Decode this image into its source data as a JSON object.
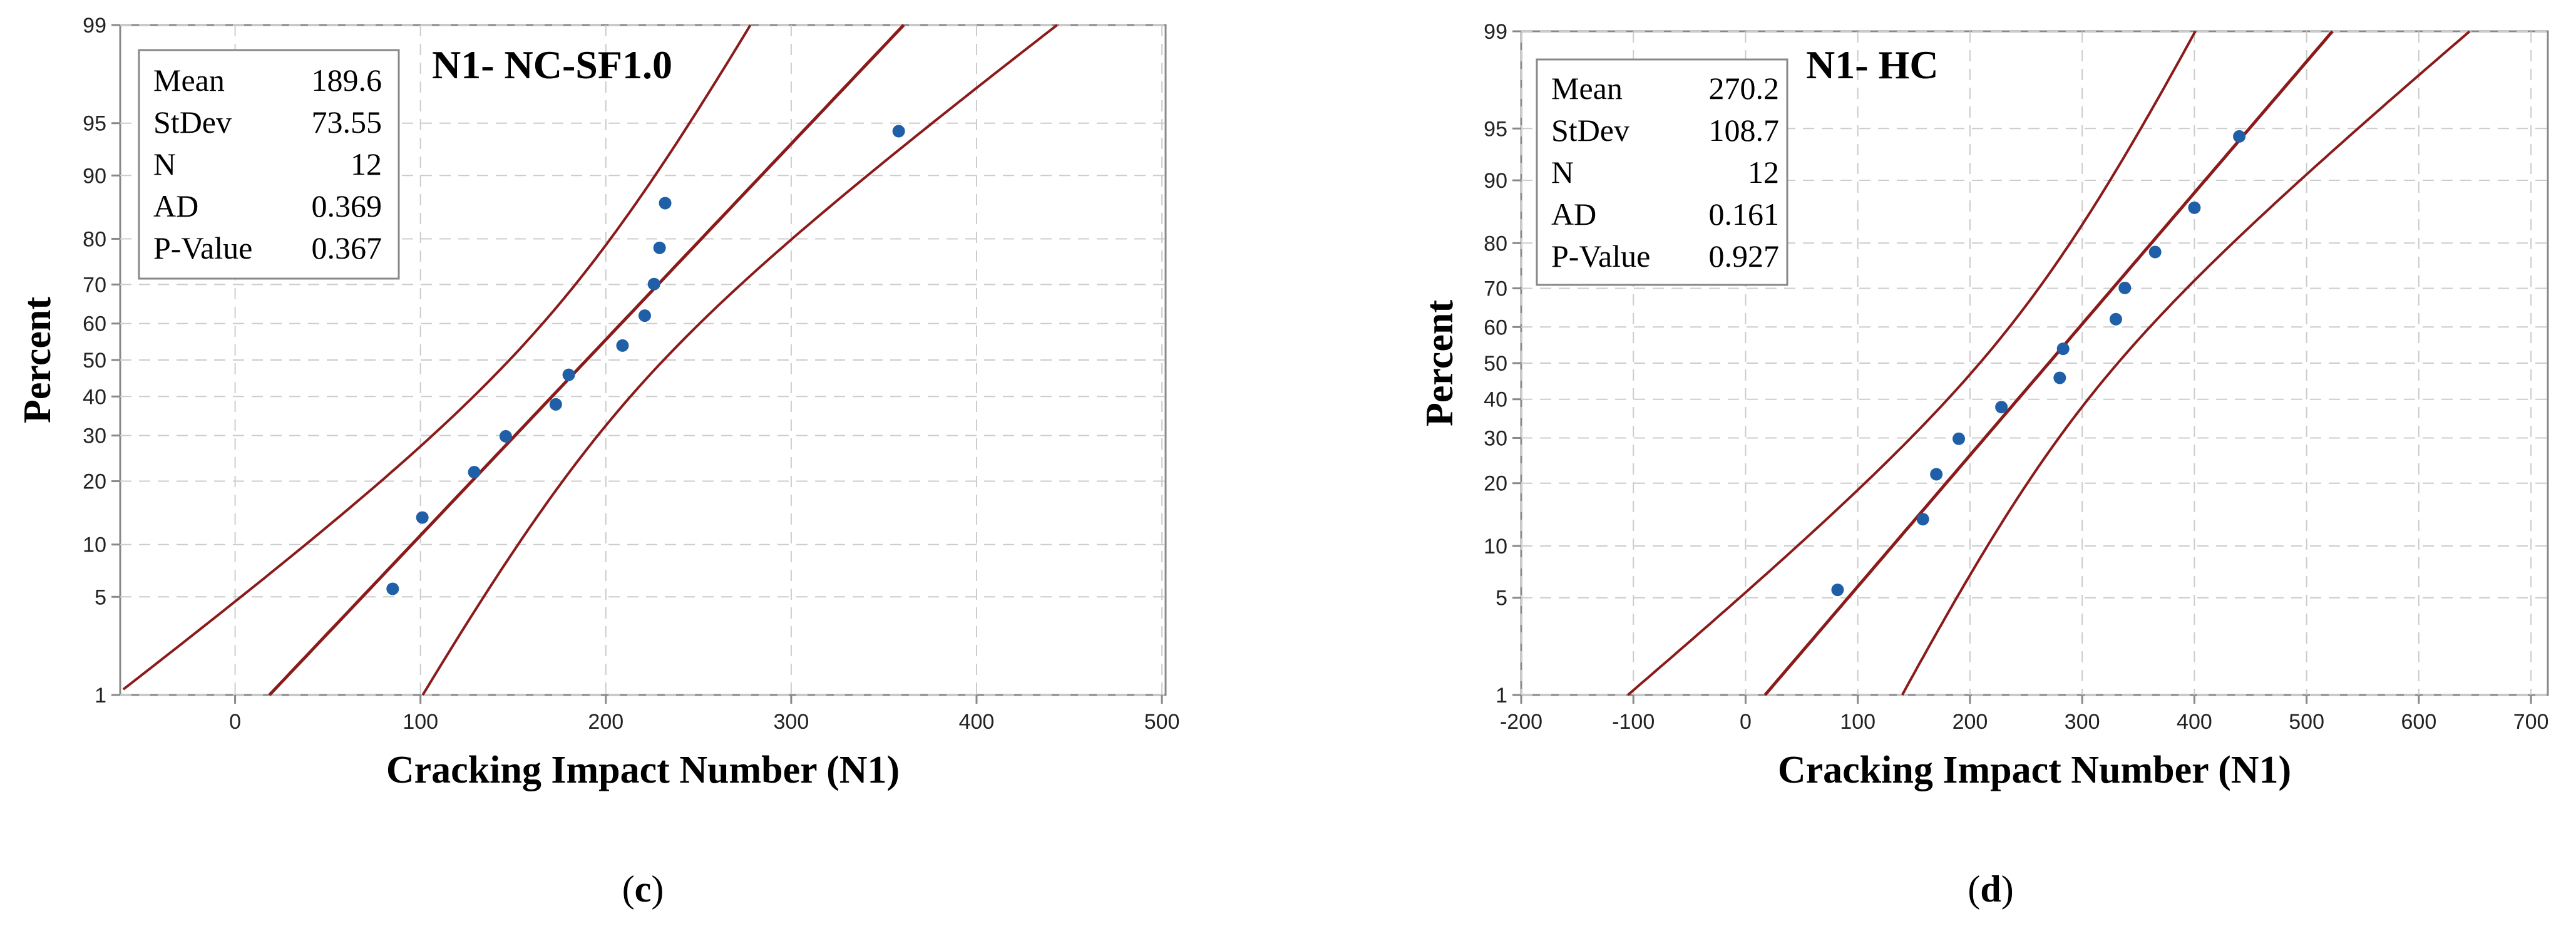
{
  "chart_data": [
    {
      "type": "scatter",
      "subtype": "normal-probability-plot",
      "panel_label": "c",
      "title": "N1- NC-SF1.0",
      "xlabel": "Cracking Impact Number (N1)",
      "ylabel": "Percent",
      "xlim": [
        -62,
        502
      ],
      "ylim": [
        1,
        99
      ],
      "y_scale": "normal-probability",
      "x_ticks": [
        0,
        100,
        200,
        300,
        400,
        500
      ],
      "y_ticks": [
        1,
        5,
        10,
        20,
        30,
        40,
        50,
        60,
        70,
        80,
        90,
        95,
        99
      ],
      "grid": true,
      "stats_box": {
        "placement": "top-left",
        "rows": [
          {
            "label": "Mean",
            "value": "189.6"
          },
          {
            "label": "StDev",
            "value": "73.55"
          },
          {
            "label": "N",
            "value": "12"
          },
          {
            "label": "AD",
            "value": "0.369"
          },
          {
            "label": "P-Value",
            "value": "0.367"
          }
        ]
      },
      "fit": {
        "mean": 189.6,
        "stdev": 73.55,
        "n": 12
      },
      "series": [
        {
          "points": [
            {
              "x": 85,
              "y": 5.6
            },
            {
              "x": 101,
              "y": 13.7
            },
            {
              "x": 129,
              "y": 21.8
            },
            {
              "x": 146,
              "y": 29.8
            },
            {
              "x": 173,
              "y": 37.9
            },
            {
              "x": 180,
              "y": 45.9
            },
            {
              "x": 209,
              "y": 54.0
            },
            {
              "x": 221,
              "y": 62.1
            },
            {
              "x": 226,
              "y": 70.1
            },
            {
              "x": 229,
              "y": 78.2
            },
            {
              "x": 232,
              "y": 86.2
            },
            {
              "x": 358,
              "y": 94.4
            }
          ]
        }
      ],
      "colors": {
        "points": "#1f5fa8",
        "lines": "#8b1a1a"
      }
    },
    {
      "type": "scatter",
      "subtype": "normal-probability-plot",
      "panel_label": "d",
      "title": "N1- HC",
      "xlabel": "Cracking Impact Number (N1)",
      "ylabel": "Percent",
      "xlim": [
        -200,
        715
      ],
      "ylim": [
        1,
        99
      ],
      "y_scale": "normal-probability",
      "x_ticks": [
        -200,
        -100,
        0,
        100,
        200,
        300,
        400,
        500,
        600,
        700
      ],
      "y_ticks": [
        1,
        5,
        10,
        20,
        30,
        40,
        50,
        60,
        70,
        80,
        90,
        95,
        99
      ],
      "grid": true,
      "stats_box": {
        "placement": "top-left",
        "rows": [
          {
            "label": "Mean",
            "value": "270.2"
          },
          {
            "label": "StDev",
            "value": "108.7"
          },
          {
            "label": "N",
            "value": "12"
          },
          {
            "label": "AD",
            "value": "0.161"
          },
          {
            "label": "P-Value",
            "value": "0.927"
          }
        ]
      },
      "fit": {
        "mean": 270.2,
        "stdev": 108.7,
        "n": 12
      },
      "series": [
        {
          "points": [
            {
              "x": 82,
              "y": 5.6
            },
            {
              "x": 158,
              "y": 13.7
            },
            {
              "x": 170,
              "y": 21.8
            },
            {
              "x": 190,
              "y": 29.8
            },
            {
              "x": 228,
              "y": 37.9
            },
            {
              "x": 280,
              "y": 45.9
            },
            {
              "x": 283,
              "y": 54.0
            },
            {
              "x": 330,
              "y": 62.1
            },
            {
              "x": 338,
              "y": 70.1
            },
            {
              "x": 365,
              "y": 78.2
            },
            {
              "x": 400,
              "y": 86.2
            },
            {
              "x": 440,
              "y": 94.4
            }
          ]
        }
      ],
      "colors": {
        "points": "#1f5fa8",
        "lines": "#8b1a1a"
      }
    }
  ]
}
